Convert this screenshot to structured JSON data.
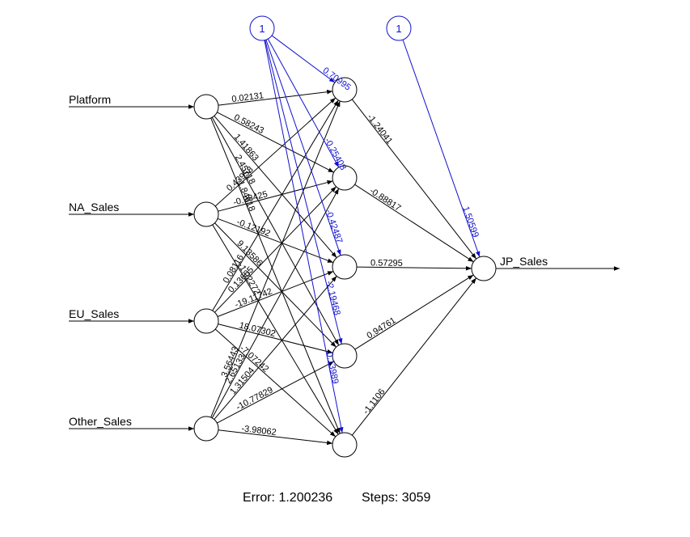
{
  "inputs": [
    "Platform",
    "NA_Sales",
    "EU_Sales",
    "Other_Sales"
  ],
  "output": "JP_Sales",
  "bias_label": "1",
  "weights_input_hidden": [
    [
      "0.02131",
      "0.58243",
      "1.41863",
      "2.45718",
      "-1.84618"
    ],
    [
      "0.43958",
      "-0.98425",
      "-0.12192",
      "9.13586",
      "-1.02272"
    ],
    [
      "0.08116",
      "0.13605",
      "-19.11742",
      "18.07302",
      "-7.07242"
    ],
    [
      "3.56443",
      "2.65133",
      "1.31504",
      "-10.77829",
      "-3.98062"
    ]
  ],
  "bias_hidden": [
    "0.70995",
    "-0.25408",
    "-0.42487",
    "-2.19468",
    "0.13989"
  ],
  "weights_hidden_output": [
    "-1.24041",
    "-0.88817",
    "0.57295",
    "0.94761",
    "-1.1106"
  ],
  "bias_output": "1.50599",
  "footer": {
    "error_label": "Error: 1.200236",
    "steps_label": "Steps: 3059"
  },
  "colors": {
    "network": "#000000",
    "bias": "#1010d0"
  }
}
